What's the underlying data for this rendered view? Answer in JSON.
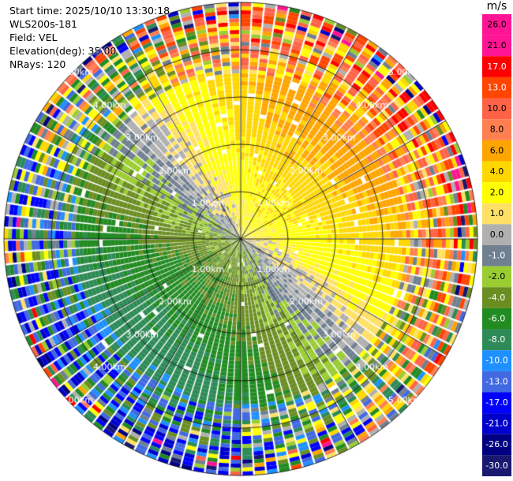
{
  "header": {
    "start_time": "Start time: 2025/10/10 13:30:18",
    "instrument": "WLS200s-181",
    "field": "Field: VEL",
    "elevation": "Elevation(deg): 35.00",
    "nrays": "NRays: 120"
  },
  "colorbar": {
    "unit": "m/s",
    "labels": [
      "26.0",
      "21.0",
      "17.0",
      "13.0",
      "10.0",
      "8.0",
      "6.0",
      "4.0",
      "2.0",
      "1.0",
      "0.0",
      "-1.0",
      "-2.0",
      "-4.0",
      "-6.0",
      "-8.0",
      "-10.0",
      "-13.0",
      "-17.0",
      "-21.0",
      "-26.0",
      "-30.0"
    ],
    "colors": [
      "#ff1493",
      "#ff1493",
      "#ff0000",
      "#ff4500",
      "#ff6347",
      "#ff7f50",
      "#ffa500",
      "#ffd700",
      "#ffff00",
      "#ffe066",
      "#b0b0b0",
      "#708090",
      "#9acd32",
      "#6b8e23",
      "#228b22",
      "#2e8b57",
      "#1e90ff",
      "#4169e1",
      "#0000ff",
      "#0000cd",
      "#000080",
      "#191970"
    ]
  },
  "chart_data": {
    "type": "ppi",
    "field": "VEL",
    "units": "m/s",
    "nrays": 120,
    "elevation_deg": 35.0,
    "max_range_km": 5.0,
    "range_rings_km": [
      1.0,
      2.0,
      3.0,
      4.0,
      5.0
    ],
    "ring_labels": [
      "1.00km",
      "2.00km",
      "3.00km",
      "4.00km",
      "5.00km"
    ],
    "spoke_angles_deg": [
      0,
      30,
      60,
      90,
      120,
      150,
      180,
      210,
      240,
      270,
      300,
      330
    ],
    "pattern": "dipole: positive velocities (yellow/orange/red) to the north-east, negative (green/blue) to the south-west, near-zero (gray) near the center and along the perpendicular axis; noisy outer gates"
  }
}
